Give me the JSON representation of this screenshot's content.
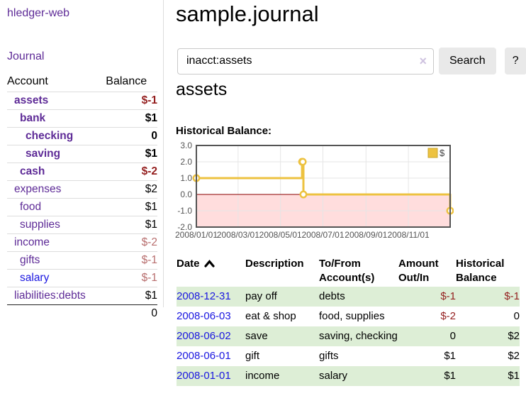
{
  "app": {
    "brand": "hledger-web"
  },
  "palette": {
    "link_purple": "#5e2b97",
    "link_blue": "#1a16e0",
    "negative_strong": "#941f1f",
    "negative_muted": "#b86e6e",
    "row_green": "#ddeed6"
  },
  "sidebar": {
    "journal_link": "Journal",
    "table": {
      "account_header": "Account",
      "balance_header": "Balance"
    },
    "accounts": [
      {
        "name": "assets",
        "depth": 1,
        "bold": true,
        "balance": "$-1",
        "balance_class": "neg-strong"
      },
      {
        "name": "bank",
        "depth": 2,
        "bold": true,
        "balance": "$1",
        "balance_class": "pos"
      },
      {
        "name": "checking",
        "depth": 3,
        "bold": true,
        "balance": "0",
        "balance_class": "pos"
      },
      {
        "name": "saving",
        "depth": 3,
        "bold": true,
        "balance": "$1",
        "balance_class": "pos"
      },
      {
        "name": "cash",
        "depth": 2,
        "bold": true,
        "balance": "$-2",
        "balance_class": "neg-strong"
      },
      {
        "name": "expenses",
        "depth": 1,
        "bold": false,
        "balance": "$2",
        "balance_class": "pos"
      },
      {
        "name": "food",
        "depth": 2,
        "bold": false,
        "balance": "$1",
        "balance_class": "pos"
      },
      {
        "name": "supplies",
        "depth": 2,
        "bold": false,
        "balance": "$1",
        "balance_class": "pos"
      },
      {
        "name": "income",
        "depth": 1,
        "bold": false,
        "balance": "$-2",
        "balance_class": "neg-muted"
      },
      {
        "name": "gifts",
        "depth": 2,
        "bold": false,
        "balance": "$-1",
        "balance_class": "neg-muted"
      },
      {
        "name": "salary",
        "depth": 2,
        "bold": false,
        "balance": "$-1",
        "balance_class": "neg-muted",
        "link_color": "blue"
      },
      {
        "name": "liabilities:debts",
        "depth": 1,
        "bold": false,
        "balance": "$1",
        "balance_class": "pos"
      }
    ],
    "total": "0"
  },
  "header": {
    "title": "sample.journal"
  },
  "search": {
    "value": "inacct:assets",
    "clear_icon": "×",
    "button": "Search",
    "help_button": "?"
  },
  "account_page": {
    "heading": "assets",
    "chart_label": "Historical Balance:"
  },
  "chart_data": {
    "type": "line",
    "style": "step",
    "title": "Historical Balance:",
    "legend": "$",
    "legend_position": "top-right",
    "xrange": [
      "2008-01-01",
      "2008-12-31"
    ],
    "ylim": [
      -2,
      3
    ],
    "yticks": [
      3,
      2,
      1,
      0,
      -1,
      -2
    ],
    "xticks": [
      "2008/01/01",
      "2008/03/01",
      "2008/05/01",
      "2008/07/01",
      "2008/09/01",
      "2008/11/01"
    ],
    "grid": true,
    "negative_fill": "#ffdddd",
    "zero_line_color": "#8b0000",
    "series": [
      {
        "name": "$",
        "color": "#edc240",
        "points": [
          [
            "2008-01-01",
            1
          ],
          [
            "2008-06-01",
            2
          ],
          [
            "2008-06-02",
            2
          ],
          [
            "2008-06-03",
            0
          ],
          [
            "2008-12-31",
            -1
          ]
        ]
      }
    ]
  },
  "register": {
    "columns": [
      {
        "id": "date",
        "lines": [
          "Date"
        ],
        "sort": true
      },
      {
        "id": "desc",
        "lines": [
          "Description"
        ]
      },
      {
        "id": "accts",
        "lines": [
          "To/From",
          "Account(s)"
        ]
      },
      {
        "id": "amount",
        "lines": [
          "Amount",
          "Out/In"
        ],
        "align": "right"
      },
      {
        "id": "balance",
        "lines": [
          "Historical",
          "Balance"
        ],
        "align": "right"
      }
    ],
    "rows": [
      {
        "date": "2008-12-31",
        "description": "pay off",
        "accounts": "debts",
        "amount": "$-1",
        "balance": "$-1"
      },
      {
        "date": "2008-06-03",
        "description": "eat & shop",
        "accounts": "food, supplies",
        "amount": "$-2",
        "balance": "0"
      },
      {
        "date": "2008-06-02",
        "description": "save",
        "accounts": "saving, checking",
        "amount": "0",
        "balance": "$2"
      },
      {
        "date": "2008-06-01",
        "description": "gift",
        "accounts": "gifts",
        "amount": "$1",
        "balance": "$2"
      },
      {
        "date": "2008-01-01",
        "description": "income",
        "accounts": "salary",
        "amount": "$1",
        "balance": "$1"
      }
    ]
  }
}
